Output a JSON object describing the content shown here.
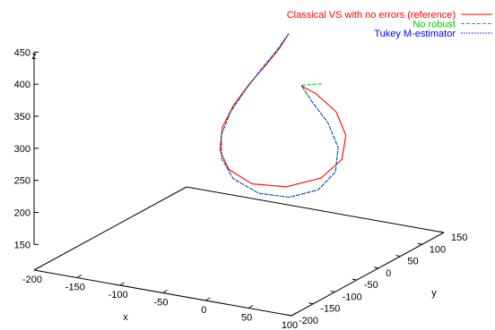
{
  "chart_data": {
    "type": "line",
    "dimensions": 3,
    "xlabel": "x",
    "ylabel": "y",
    "zlabel": "z",
    "x_ticks": [
      "-200",
      "-150",
      "-100",
      "-50",
      "0",
      "50",
      "100"
    ],
    "y_ticks": [
      "-200",
      "-150",
      "-100",
      "-50",
      "0",
      "50",
      "100",
      "150"
    ],
    "z_ticks": [
      "150",
      "200",
      "250",
      "300",
      "350",
      "400",
      "450"
    ],
    "xlim": [
      -200,
      100
    ],
    "ylim": [
      -200,
      150
    ],
    "zlim": [
      150,
      450
    ],
    "grid": false,
    "legend_position": "top-right",
    "series": [
      {
        "name": "Classical VS with no errors (reference)",
        "color": "#ff0000",
        "dash": "solid",
        "points": [
          [
            -15,
            20,
            441
          ],
          [
            -25,
            18,
            416
          ],
          [
            -38,
            12,
            389
          ],
          [
            -52,
            2,
            360
          ],
          [
            -63,
            -12,
            330
          ],
          [
            -68,
            -28,
            300
          ],
          [
            -62,
            -45,
            272
          ],
          [
            -45,
            -58,
            251
          ],
          [
            -15,
            -64,
            238
          ],
          [
            22,
            -58,
            240
          ],
          [
            55,
            -43,
            256
          ],
          [
            70,
            -25,
            282
          ],
          [
            66,
            -8,
            312
          ],
          [
            48,
            5,
            340
          ],
          [
            20,
            14,
            358
          ],
          [
            0,
            19,
            364
          ]
        ]
      },
      {
        "name": "No robust",
        "color": "#00cc00",
        "dash": "dashed",
        "points": [
          [
            -15,
            20,
            441
          ],
          [
            -28,
            18,
            412
          ],
          [
            -42,
            11,
            383
          ],
          [
            -55,
            0,
            352
          ],
          [
            -65,
            -15,
            320
          ],
          [
            -67,
            -32,
            290
          ],
          [
            -58,
            -49,
            262
          ],
          [
            -38,
            -62,
            240
          ],
          [
            -5,
            -68,
            227
          ],
          [
            28,
            -63,
            227
          ],
          [
            55,
            -50,
            240
          ],
          [
            66,
            -32,
            264
          ],
          [
            60,
            -14,
            294
          ],
          [
            40,
            2,
            322
          ],
          [
            15,
            14,
            345
          ],
          [
            0,
            20,
            364
          ],
          [
            20,
            27,
            369
          ]
        ]
      },
      {
        "name": "Tukey M-estimator",
        "color": "#0000ff",
        "dash": "dotted",
        "points": [
          [
            -15,
            20,
            441
          ],
          [
            -28,
            18,
            412
          ],
          [
            -42,
            11,
            383
          ],
          [
            -55,
            0,
            352
          ],
          [
            -65,
            -15,
            320
          ],
          [
            -67,
            -32,
            290
          ],
          [
            -58,
            -49,
            262
          ],
          [
            -38,
            -62,
            240
          ],
          [
            -5,
            -68,
            227
          ],
          [
            28,
            -63,
            227
          ],
          [
            55,
            -50,
            240
          ],
          [
            66,
            -32,
            264
          ],
          [
            60,
            -14,
            294
          ],
          [
            40,
            2,
            322
          ],
          [
            15,
            14,
            345
          ],
          [
            0,
            20,
            364
          ]
        ]
      }
    ]
  }
}
